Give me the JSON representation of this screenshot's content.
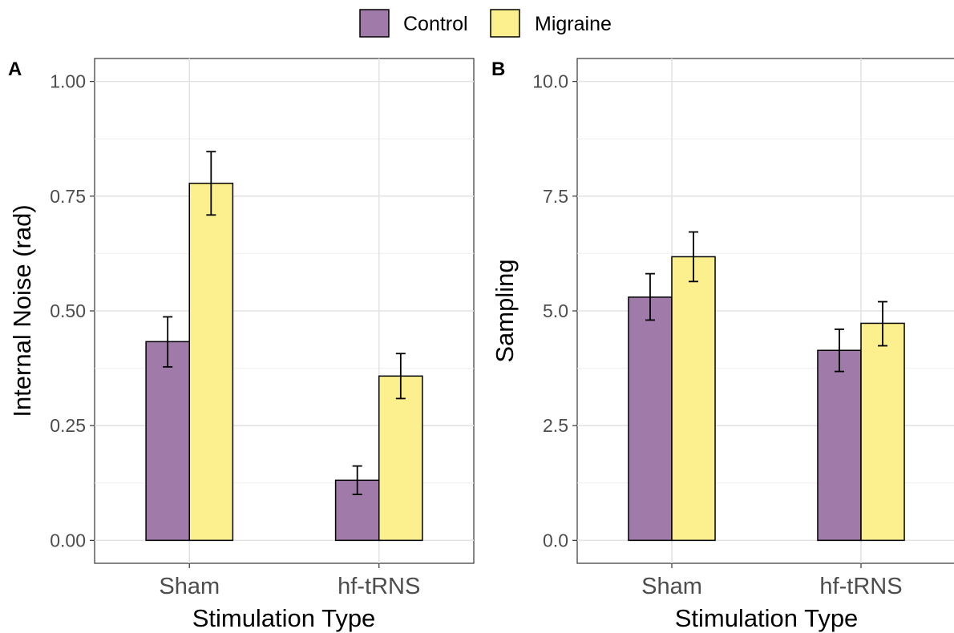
{
  "legend": {
    "items": [
      {
        "label": "Control",
        "color": "#a07aa8"
      },
      {
        "label": "Migraine",
        "color": "#fbef8e"
      }
    ]
  },
  "chart_data": [
    {
      "type": "bar",
      "panel_label": "A",
      "xlabel": "Stimulation Type",
      "ylabel": "Internal Noise (rad)",
      "categories": [
        "Sham",
        "hf-tRNS"
      ],
      "ylim": [
        -0.05,
        1.05
      ],
      "yticks": [
        0,
        0.25,
        0.5,
        0.75,
        1.0
      ],
      "ytick_labels": [
        "0.00",
        "0.25",
        "0.50",
        "0.75",
        "1.00"
      ],
      "grid": true,
      "series": [
        {
          "name": "Control",
          "values": [
            0.433,
            0.131
          ],
          "error": [
            [
              0.378,
              0.487
            ],
            [
              0.1,
              0.162
            ]
          ]
        },
        {
          "name": "Migraine",
          "values": [
            0.778,
            0.358
          ],
          "error": [
            [
              0.709,
              0.847
            ],
            [
              0.309,
              0.407
            ]
          ]
        }
      ]
    },
    {
      "type": "bar",
      "panel_label": "B",
      "xlabel": "Stimulation Type",
      "ylabel": "Sampling",
      "categories": [
        "Sham",
        "hf-tRNS"
      ],
      "ylim": [
        -0.5,
        10.5
      ],
      "yticks": [
        0,
        2.5,
        5,
        7.5,
        10
      ],
      "ytick_labels": [
        "0.0",
        "2.5",
        "5.0",
        "7.5",
        "10.0"
      ],
      "grid": true,
      "series": [
        {
          "name": "Control",
          "values": [
            5.3,
            4.14
          ],
          "error": [
            [
              4.8,
              5.81
            ],
            [
              3.68,
              4.6
            ]
          ]
        },
        {
          "name": "Migraine",
          "values": [
            6.18,
            4.73
          ],
          "error": [
            [
              5.64,
              6.72
            ],
            [
              4.24,
              5.2
            ]
          ]
        }
      ]
    }
  ]
}
